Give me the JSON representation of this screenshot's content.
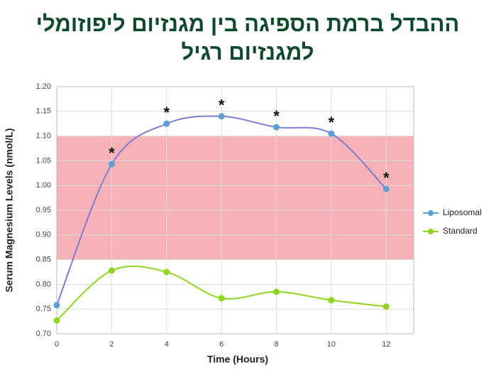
{
  "chart_data": {
    "type": "line",
    "title": [
      "ההבדל ברמת הספיגה בין מגנזיום ליפוזומלי",
      "למגנזיום רגיל"
    ],
    "x_label": "Time (Hours)",
    "y_label": "Serum Magnesium Levels (nmol/L)",
    "x": [
      0,
      2,
      4,
      6,
      8,
      10,
      12
    ],
    "series": [
      {
        "name": "Liposomal",
        "color": "#5b9fd6",
        "values": [
          0.758,
          1.043,
          1.125,
          1.14,
          1.118,
          1.105,
          0.993
        ]
      },
      {
        "name": "Standard",
        "color": "#8fd61e",
        "values": [
          0.727,
          0.828,
          0.825,
          0.772,
          0.785,
          0.768,
          0.755
        ]
      }
    ],
    "annotations": [
      {
        "x": 2,
        "text": "*"
      },
      {
        "x": 4,
        "text": "*"
      },
      {
        "x": 6,
        "text": "*"
      },
      {
        "x": 8,
        "text": "*"
      },
      {
        "x": 10,
        "text": "*"
      },
      {
        "x": 12,
        "text": "*"
      }
    ],
    "band": {
      "ymin": 0.85,
      "ymax": 1.1,
      "color": "#f7a3aa"
    },
    "xlim": [
      0,
      13
    ],
    "xticks": [
      0,
      2,
      4,
      6,
      8,
      10,
      12
    ],
    "ylim": [
      0.7,
      1.2
    ],
    "yticks": [
      {
        "value": 0.7,
        "label": "0.70"
      },
      0.75,
      {
        "value": 0.8,
        "label": "0.80"
      },
      0.85,
      {
        "value": 0.9,
        "label": "0.90"
      },
      0.95,
      {
        "value": 1.0,
        "label": "1.00"
      },
      1.05,
      {
        "value": 1.1,
        "label": "1.10"
      },
      1.15,
      {
        "value": 1.2,
        "label": "1.20"
      }
    ],
    "grid": true,
    "legend": "right"
  }
}
